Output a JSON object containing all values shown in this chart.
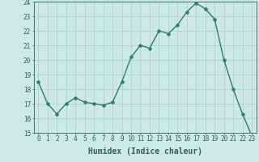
{
  "x": [
    0,
    1,
    2,
    3,
    4,
    5,
    6,
    7,
    8,
    9,
    10,
    11,
    12,
    13,
    14,
    15,
    16,
    17,
    18,
    19,
    20,
    21,
    22,
    23
  ],
  "y": [
    18.5,
    17.0,
    16.3,
    17.0,
    17.4,
    17.1,
    17.0,
    16.9,
    17.1,
    18.5,
    20.2,
    21.0,
    20.8,
    22.0,
    21.8,
    22.4,
    23.3,
    23.9,
    23.5,
    22.8,
    20.0,
    18.0,
    16.3,
    14.8
  ],
  "line_color": "#2e7d6e",
  "marker": "o",
  "marker_size": 2.2,
  "bg_color": "#cce8e8",
  "grid_color": "#aacece",
  "xlabel": "Humidex (Indice chaleur)",
  "ylim": [
    15,
    24
  ],
  "xlim": [
    -0.5,
    23.5
  ],
  "yticks": [
    15,
    16,
    17,
    18,
    19,
    20,
    21,
    22,
    23,
    24
  ],
  "xticks": [
    0,
    1,
    2,
    3,
    4,
    5,
    6,
    7,
    8,
    9,
    10,
    11,
    12,
    13,
    14,
    15,
    16,
    17,
    18,
    19,
    20,
    21,
    22,
    23
  ],
  "tick_color": "#2e6060",
  "axis_color": "#2e6060",
  "xlabel_fontsize": 7,
  "tick_fontsize": 5.5,
  "line_width": 1.0
}
